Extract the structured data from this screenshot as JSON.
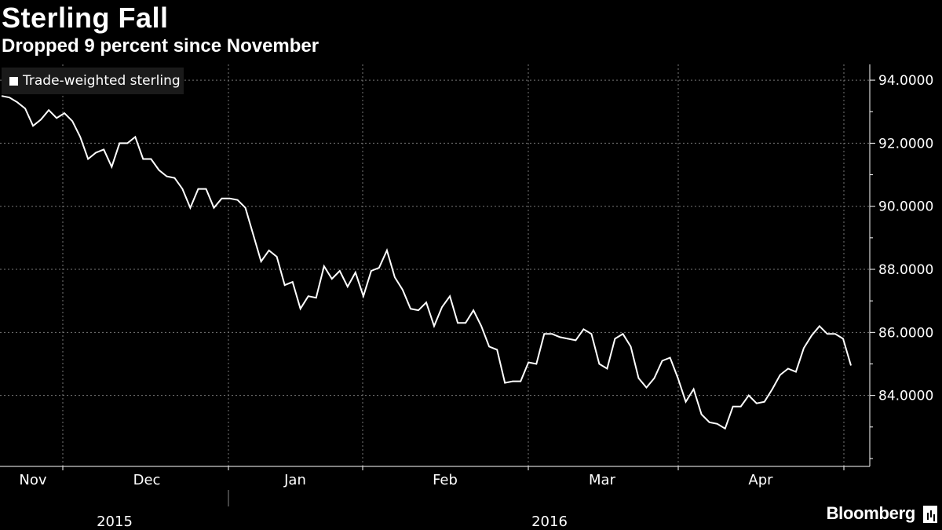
{
  "title": "Sterling Fall",
  "subtitle": "Dropped 9 percent since November",
  "legend": {
    "label": "Trade-weighted sterling",
    "color": "#ffffff"
  },
  "brand": "Bloomberg",
  "chart_data": {
    "type": "line",
    "series": [
      {
        "name": "Trade-weighted sterling",
        "color": "#ffffff",
        "values": [
          93.5,
          93.45,
          93.3,
          93.1,
          92.55,
          92.75,
          93.05,
          92.8,
          92.95,
          92.7,
          92.2,
          91.5,
          91.7,
          91.8,
          91.25,
          92.0,
          92.0,
          92.2,
          91.5,
          91.5,
          91.15,
          90.95,
          90.9,
          90.55,
          89.95,
          90.55,
          90.55,
          89.95,
          90.25,
          90.25,
          90.2,
          89.95,
          89.1,
          88.25,
          88.6,
          88.4,
          87.5,
          87.6,
          86.75,
          87.15,
          87.1,
          88.1,
          87.7,
          87.95,
          87.45,
          87.9,
          87.15,
          87.95,
          88.05,
          88.6,
          87.75,
          87.35,
          86.75,
          86.7,
          86.95,
          86.2,
          86.8,
          87.15,
          86.3,
          86.3,
          86.7,
          86.2,
          85.55,
          85.45,
          84.4,
          84.45,
          84.45,
          85.05,
          85.0,
          85.95,
          85.95,
          85.85,
          85.8,
          85.75,
          86.1,
          85.95,
          85.0,
          84.85,
          85.8,
          85.95,
          85.55,
          84.55,
          84.25,
          84.55,
          85.1,
          85.2,
          84.55,
          83.8,
          84.2,
          83.4,
          83.15,
          83.1,
          82.95,
          83.65,
          83.65,
          84.0,
          83.75,
          83.8,
          84.2,
          84.65,
          84.85,
          84.75,
          85.5,
          85.9,
          86.2,
          85.95,
          85.95,
          85.8,
          84.95
        ]
      }
    ],
    "y_ticks": [
      "94.0000",
      "92.0000",
      "90.0000",
      "88.0000",
      "86.0000",
      "84.0000"
    ],
    "y_tick_values": [
      94,
      92,
      90,
      88,
      86,
      84
    ],
    "ylim": [
      81.75,
      94.5
    ],
    "x_month_labels": [
      "Nov",
      "Dec",
      "Jan",
      "Feb",
      "Mar",
      "Apr"
    ],
    "x_year_labels": [
      "2015",
      "2016"
    ],
    "grid": true,
    "legend_position": "top-left"
  }
}
